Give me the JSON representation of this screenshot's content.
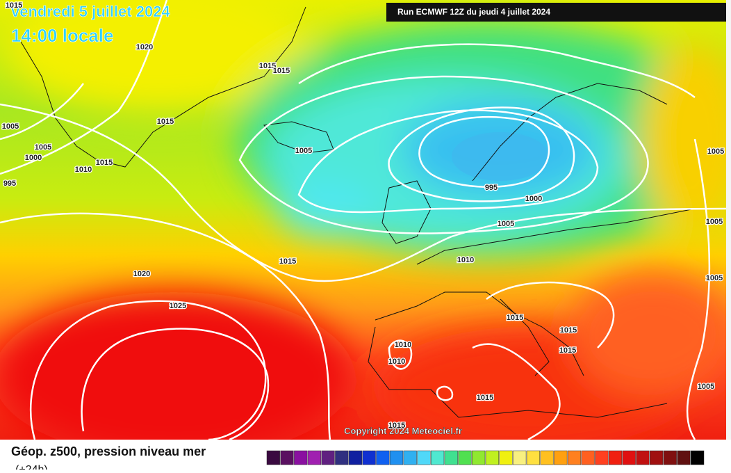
{
  "header": {
    "date": "vendredi 5 juillet 2024",
    "time": "14:00 locale",
    "run": "Run ECMWF 12Z du jeudi 4 juillet 2024"
  },
  "isobar_labels": [
    "1015",
    "1020",
    "1015",
    "1015",
    "1005",
    "1015",
    "1005",
    "1000",
    "1015",
    "1010",
    "995",
    "1005",
    "995",
    "1000",
    "1005",
    "1015",
    "1010",
    "1020",
    "1025",
    "1015",
    "1015",
    "1010",
    "1010",
    "1015",
    "1015",
    "1015",
    "1005",
    "1005",
    "1005",
    "1005"
  ],
  "copyright": "Copyright 2024 Meteociel.fr",
  "footer": {
    "title": "Géop. z500, pression niveau mer",
    "subtitle": "(+24h)"
  }
}
